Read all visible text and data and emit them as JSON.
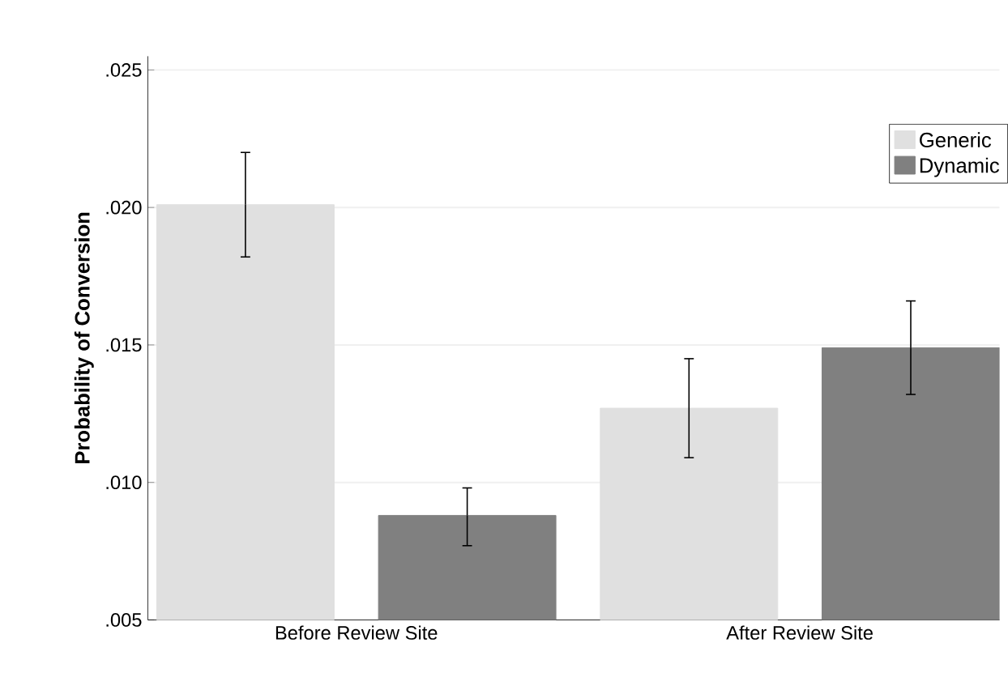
{
  "chart_data": {
    "type": "bar",
    "ylabel": "Probability of Conversion",
    "categories": [
      "Before Review Site",
      "After Review Site"
    ],
    "series": [
      {
        "name": "Generic",
        "color": "#e0e0e0",
        "values": [
          0.0201,
          0.0127
        ],
        "errors": [
          [
            0.0182,
            0.022
          ],
          [
            0.0109,
            0.0145
          ]
        ]
      },
      {
        "name": "Dynamic",
        "color": "#808080",
        "values": [
          0.0088,
          0.0149
        ],
        "errors": [
          [
            0.0077,
            0.0098
          ],
          [
            0.0132,
            0.0166
          ]
        ]
      }
    ],
    "ylim": [
      0.005,
      0.0255
    ],
    "yticks": [
      {
        "value": 0.005,
        "label": ".005"
      },
      {
        "value": 0.01,
        "label": ".010"
      },
      {
        "value": 0.015,
        "label": ".015"
      },
      {
        "value": 0.02,
        "label": ".020"
      },
      {
        "value": 0.025,
        "label": ".025"
      }
    ],
    "grid": "y",
    "legend": "top right"
  }
}
